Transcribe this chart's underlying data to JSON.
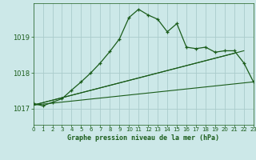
{
  "title": "Graphe pression niveau de la mer (hPa)",
  "background_color": "#cce8e8",
  "grid_color": "#aacccc",
  "line_color": "#1a5c1a",
  "xlim": [
    0,
    23
  ],
  "ylim": [
    1016.55,
    1019.95
  ],
  "yticks": [
    1017,
    1018,
    1019
  ],
  "xticks": [
    0,
    1,
    2,
    3,
    4,
    5,
    6,
    7,
    8,
    9,
    10,
    11,
    12,
    13,
    14,
    15,
    16,
    17,
    18,
    19,
    20,
    21,
    22,
    23
  ],
  "series_main_x": [
    0,
    1,
    2,
    3,
    4,
    5,
    6,
    7,
    8,
    9,
    10,
    11,
    12,
    13,
    14,
    15,
    16,
    17,
    18,
    19,
    20,
    21,
    22,
    23
  ],
  "series_main_y": [
    1017.15,
    1017.08,
    1017.18,
    1017.28,
    1017.52,
    1017.75,
    1018.0,
    1018.28,
    1018.6,
    1018.95,
    1019.55,
    1019.78,
    1019.62,
    1019.5,
    1019.15,
    1019.38,
    1018.72,
    1018.68,
    1018.72,
    1018.58,
    1018.62,
    1018.62,
    1018.28,
    1017.75
  ],
  "trend1_x": [
    0,
    21
  ],
  "trend1_y": [
    1017.1,
    1018.55
  ],
  "trend2_x": [
    0,
    22
  ],
  "trend2_y": [
    1017.1,
    1018.62
  ],
  "trend3_x": [
    0,
    23
  ],
  "trend3_y": [
    1017.1,
    1017.75
  ],
  "figsize": [
    3.2,
    2.0
  ],
  "dpi": 100
}
